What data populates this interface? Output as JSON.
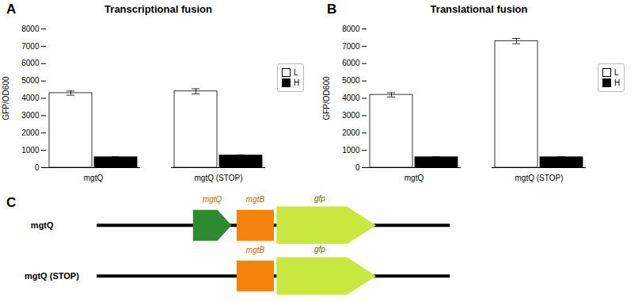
{
  "chart_data": [
    {
      "type": "bar",
      "title": "Transcriptional fusion",
      "annotations": [
        "A"
      ],
      "categories": [
        "mgtQ",
        "mgtQ (STOP)"
      ],
      "series": [
        {
          "name": "L",
          "color": "#ffffff",
          "values": [
            4300,
            4400
          ],
          "errors": [
            120,
            150
          ]
        },
        {
          "name": "H",
          "color": "#000000",
          "values": [
            600,
            700
          ],
          "errors": [
            30,
            40
          ]
        }
      ],
      "ylabel": "GFP/OD600",
      "ylim": [
        0,
        8000
      ],
      "yticks": [
        0,
        1000,
        2000,
        3000,
        4000,
        5000,
        6000,
        7000,
        8000
      ],
      "legend": "right"
    },
    {
      "type": "bar",
      "title": "Translational fusion",
      "annotations": [
        "B"
      ],
      "categories": [
        "mgtQ",
        "mgtQ (STOP)"
      ],
      "series": [
        {
          "name": "L",
          "color": "#ffffff",
          "values": [
            4200,
            7300
          ],
          "errors": [
            120,
            150
          ]
        },
        {
          "name": "H",
          "color": "#000000",
          "values": [
            600,
            600
          ],
          "errors": [
            30,
            30
          ]
        }
      ],
      "ylabel": "GFP/OD600",
      "ylim": [
        0,
        8000
      ],
      "yticks": [
        0,
        1000,
        2000,
        3000,
        4000,
        5000,
        6000,
        7000,
        8000
      ],
      "legend": "right"
    },
    {
      "type": "diagram",
      "annotations": [
        "C"
      ],
      "categories": [
        "mgtQ",
        "mgtQ (STOP)"
      ],
      "genes": [
        {
          "name": "mgtQ",
          "color": "#2d8a2d",
          "label_color": "#cc6600",
          "rows": [
            "mgtQ"
          ]
        },
        {
          "name": "mgtB",
          "color": "#f5820a",
          "label_color": "#cc6600",
          "rows": [
            "mgtQ",
            "mgtQ (STOP)"
          ]
        },
        {
          "name": "gfp",
          "color": "#c8e840",
          "label_color": "#666600",
          "rows": [
            "mgtQ",
            "mgtQ (STOP)"
          ]
        }
      ]
    }
  ]
}
